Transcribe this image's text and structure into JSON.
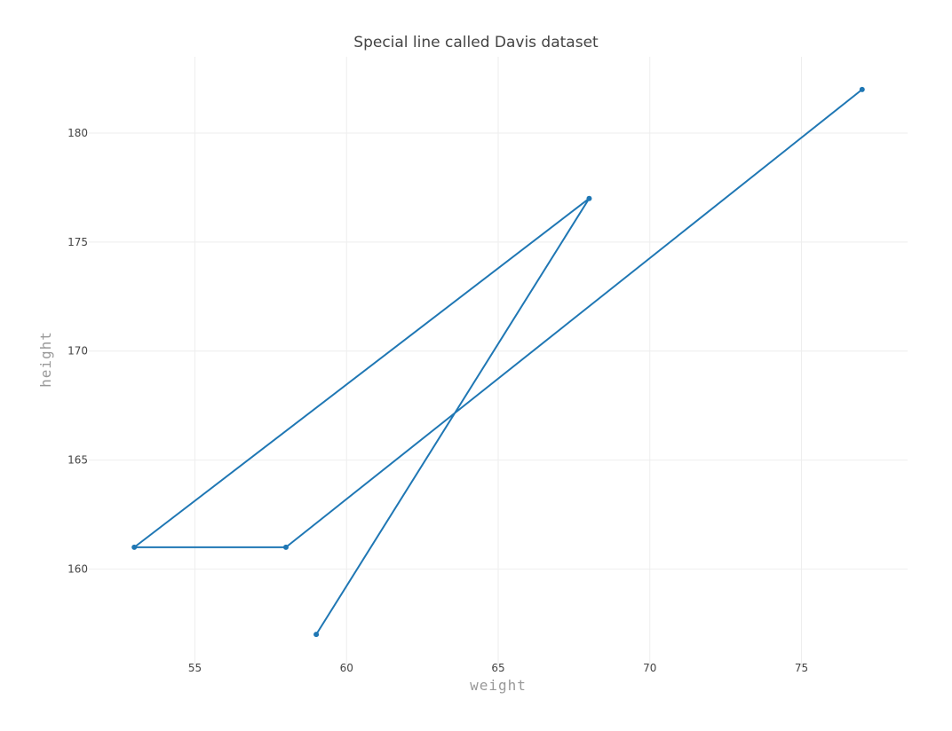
{
  "chart_data": {
    "type": "line",
    "title": "Special line called Davis dataset",
    "xlabel": "weight",
    "ylabel": "height",
    "xlim": [
      51.5,
      78.5
    ],
    "ylim": [
      155.5,
      183.5
    ],
    "xticks": [
      55,
      60,
      65,
      70,
      75
    ],
    "yticks": [
      160,
      165,
      170,
      175,
      180
    ],
    "grid": true,
    "series": [
      {
        "color": "#1f77b4",
        "mode": "lines+markers",
        "x": [
          77,
          58,
          53,
          68,
          59
        ],
        "y": [
          182,
          161,
          161,
          177,
          157
        ]
      }
    ]
  }
}
